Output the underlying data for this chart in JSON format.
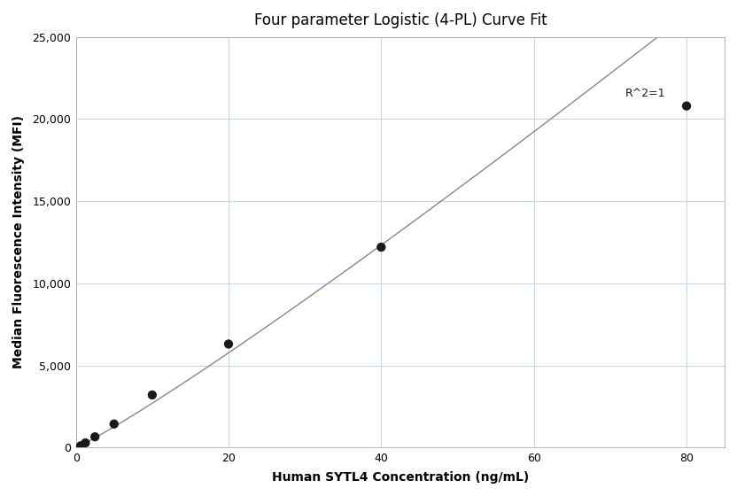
{
  "title": "Four parameter Logistic (4-PL) Curve Fit",
  "xlabel": "Human SYTL4 Concentration (ng/mL)",
  "ylabel": "Median Fluorescence Intensity (MFI)",
  "x_data": [
    0.625,
    1.25,
    2.5,
    5,
    10,
    20,
    40,
    80
  ],
  "y_data": [
    100,
    280,
    650,
    1430,
    3200,
    6300,
    12200,
    20800
  ],
  "xlim": [
    0,
    85
  ],
  "ylim": [
    0,
    25000
  ],
  "yticks": [
    0,
    5000,
    10000,
    15000,
    20000,
    25000
  ],
  "xticks": [
    0,
    20,
    40,
    60,
    80
  ],
  "r_squared_text": "R^2=1",
  "r_squared_x": 72,
  "r_squared_y": 21200,
  "dot_color": "#1a1a1a",
  "line_color": "#888888",
  "grid_color": "#c8d8e8",
  "background_color": "#ffffff",
  "title_fontsize": 12,
  "label_fontsize": 10,
  "tick_fontsize": 9,
  "dot_size": 55,
  "figsize": [
    8.32,
    5.6
  ],
  "dpi": 100
}
